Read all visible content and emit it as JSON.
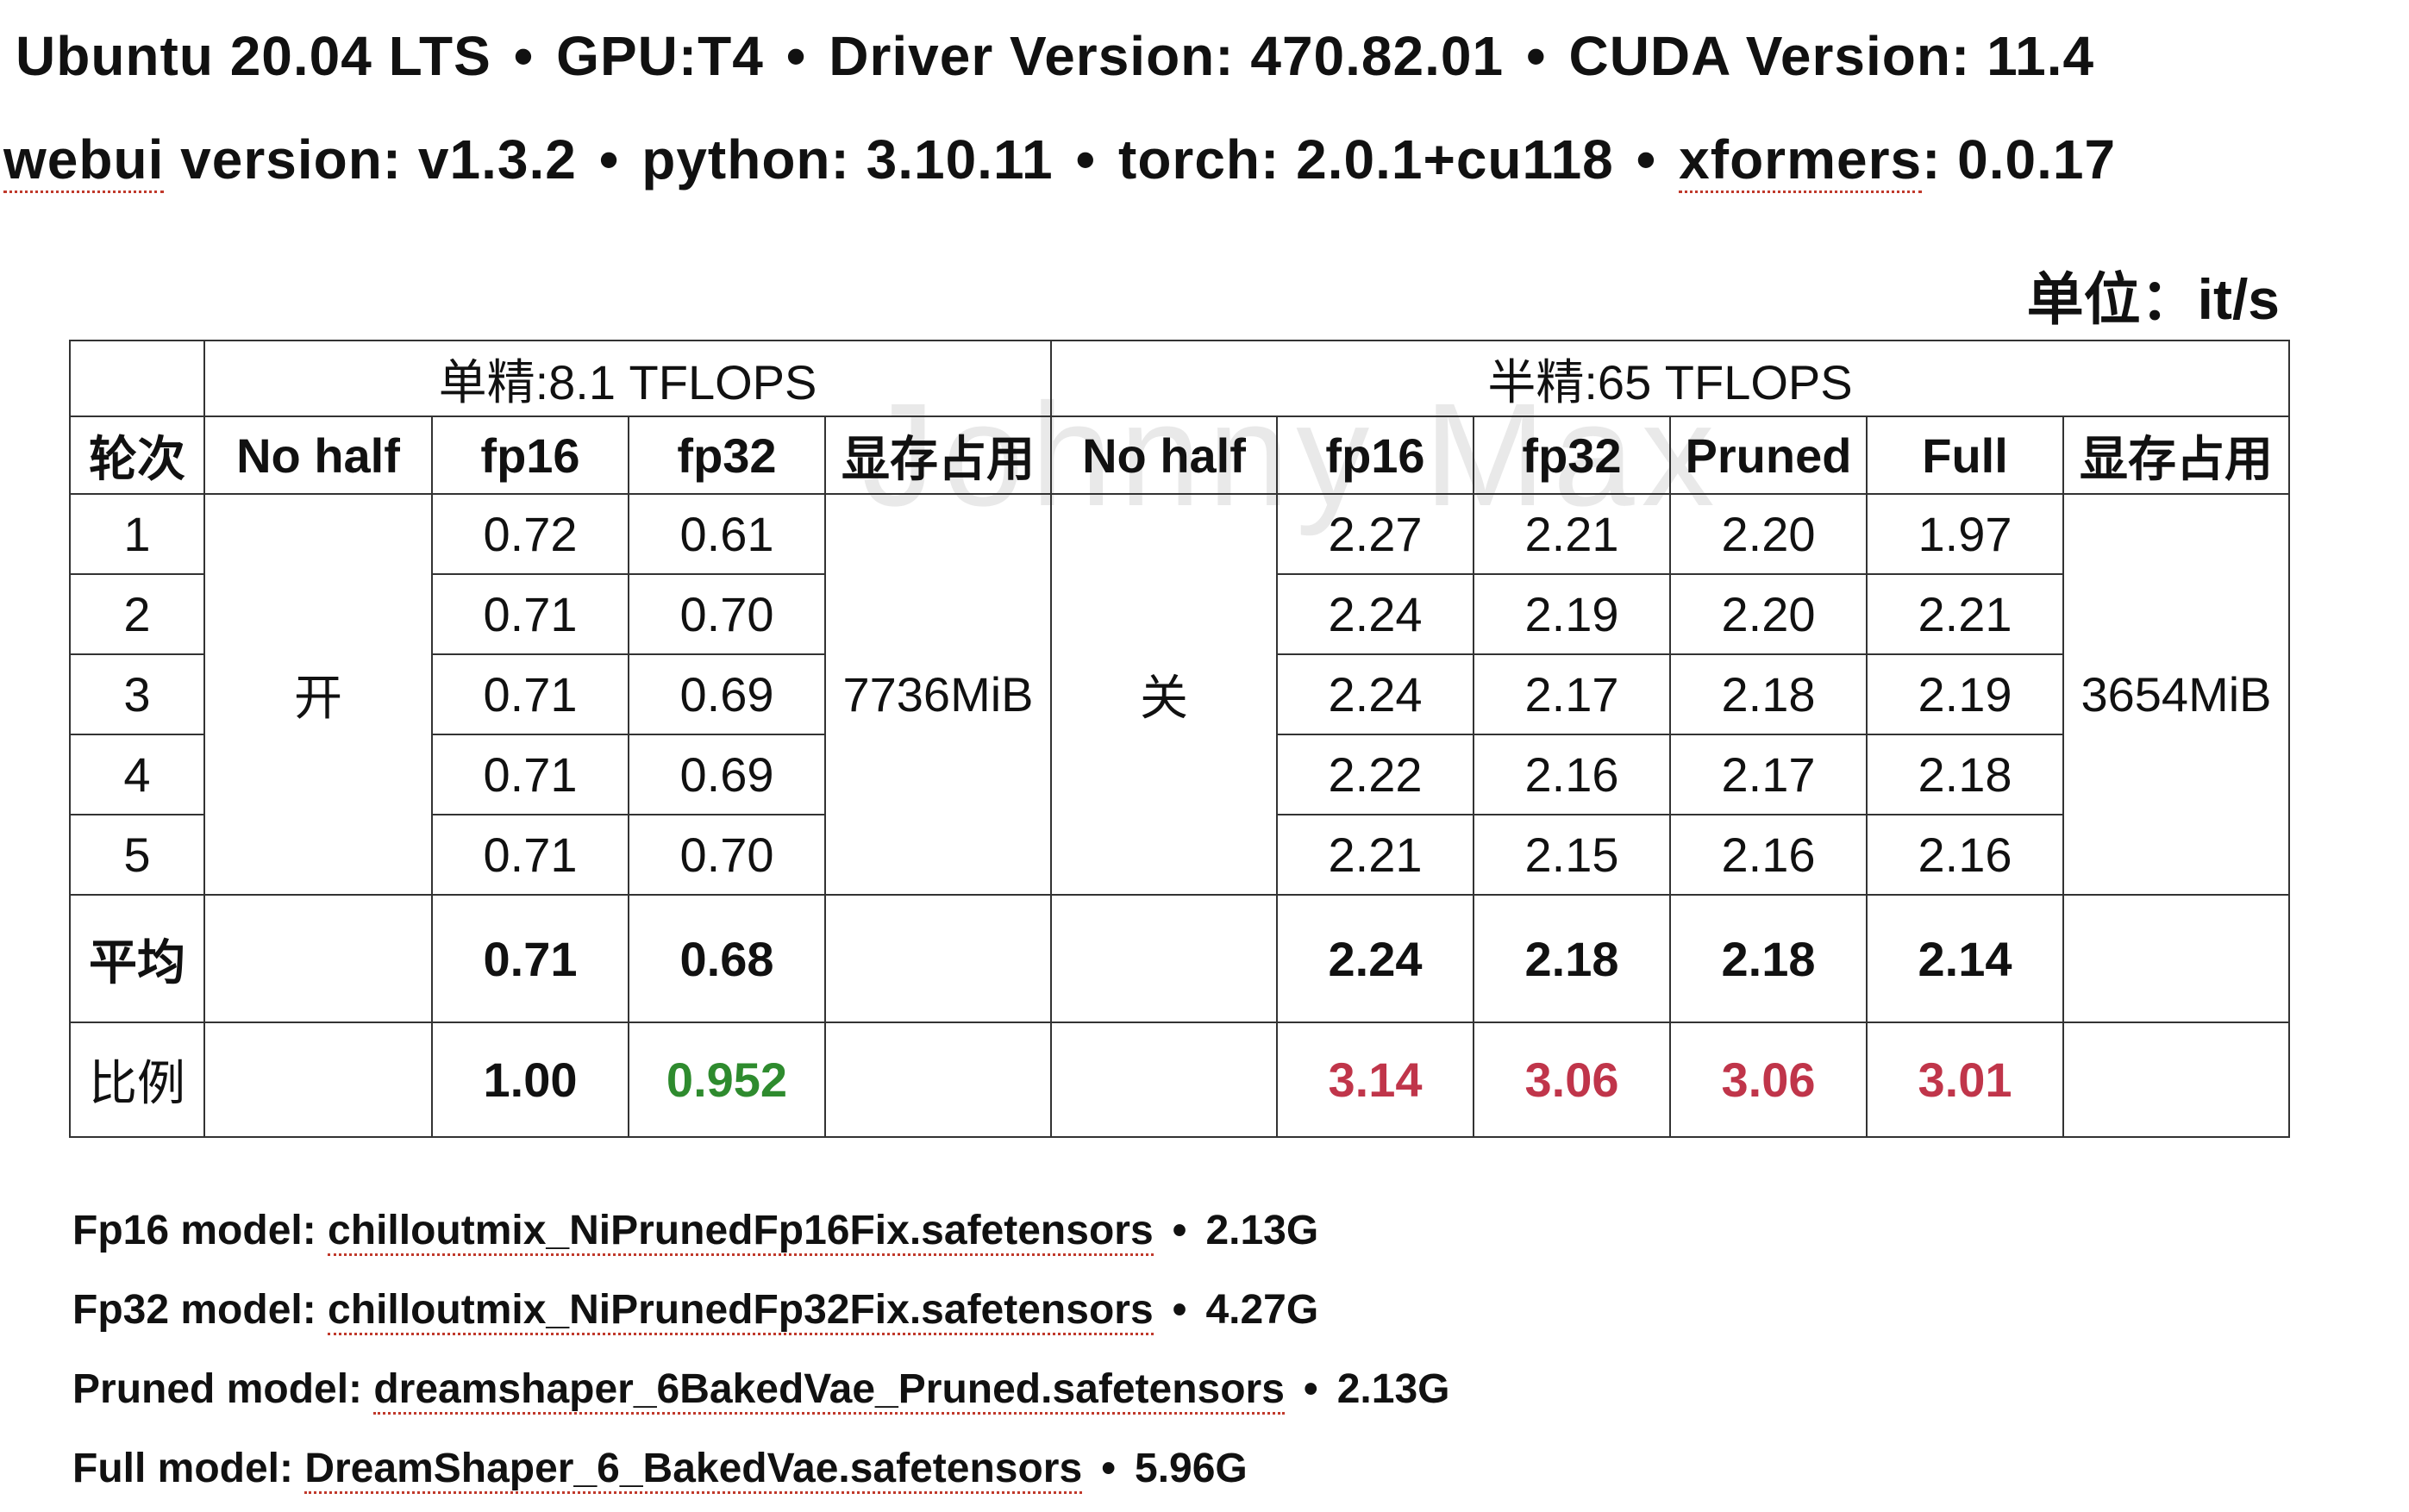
{
  "header": {
    "line1": {
      "os": "Ubuntu 20.04 LTS",
      "gpu": "GPU:T4",
      "driver": "Driver Version: 470.82.01",
      "cuda": "CUDA Version: 11.4"
    },
    "line2": {
      "webui_word": "webui",
      "webui_rest": " version: v1.3.2",
      "python": "python: 3.10.11",
      "torch": "torch: 2.0.1+cu118",
      "xformers_word": "xformers",
      "xformers_rest": ": 0.0.17"
    },
    "separator": "•",
    "unit": "单位：it/s"
  },
  "watermark": "Johnny Max",
  "table": {
    "group_single": "单精:8.1  TFLOPS",
    "group_half": "半精:65  TFLOPS",
    "columns": {
      "round": "轮次",
      "no_half_single": "No half",
      "fp16_single": "fp16",
      "fp32_single": "fp32",
      "mem_single": "显存占用",
      "no_half_half": "No half",
      "fp16_half": "fp16",
      "fp32_half": "fp32",
      "pruned_half": "Pruned",
      "full_half": "Full",
      "mem_half": "显存占用"
    },
    "no_half_single_value": "开",
    "no_half_half_value": "关",
    "mem_single_value": "7736MiB",
    "mem_half_value": "3654MiB",
    "rows": [
      {
        "round": "1",
        "s_fp16": "0.72",
        "s_fp32": "0.61",
        "h_fp16": "2.27",
        "h_fp32": "2.21",
        "h_pruned": "2.20",
        "h_full": "1.97"
      },
      {
        "round": "2",
        "s_fp16": "0.71",
        "s_fp32": "0.70",
        "h_fp16": "2.24",
        "h_fp32": "2.19",
        "h_pruned": "2.20",
        "h_full": "2.21"
      },
      {
        "round": "3",
        "s_fp16": "0.71",
        "s_fp32": "0.69",
        "h_fp16": "2.24",
        "h_fp32": "2.17",
        "h_pruned": "2.18",
        "h_full": "2.19"
      },
      {
        "round": "4",
        "s_fp16": "0.71",
        "s_fp32": "0.69",
        "h_fp16": "2.22",
        "h_fp32": "2.16",
        "h_pruned": "2.17",
        "h_full": "2.18"
      },
      {
        "round": "5",
        "s_fp16": "0.71",
        "s_fp32": "0.70",
        "h_fp16": "2.21",
        "h_fp32": "2.15",
        "h_pruned": "2.16",
        "h_full": "2.16"
      }
    ],
    "average": {
      "label": "平均",
      "s_fp16": "0.71",
      "s_fp32": "0.68",
      "h_fp16": "2.24",
      "h_fp32": "2.18",
      "h_pruned": "2.18",
      "h_full": "2.14"
    },
    "ratio": {
      "label": "比例",
      "s_fp16": "1.00",
      "s_fp32": "0.952",
      "h_fp16": "3.14",
      "h_fp32": "3.06",
      "h_pruned": "3.06",
      "h_full": "3.01"
    },
    "colors": {
      "ratio_green": "#2e8b2e",
      "ratio_red": "#c0354a"
    }
  },
  "models": [
    {
      "label": "Fp16 model: ",
      "file": "chilloutmix_NiPrunedFp16Fix.safetensors",
      "size": "2.13G"
    },
    {
      "label": "Fp32 model: ",
      "file": "chilloutmix_NiPrunedFp32Fix.safetensors",
      "size": "4.27G"
    },
    {
      "label": "Pruned model: ",
      "file": "dreamshaper_6BakedVae_Pruned.safetensors",
      "size": "2.13G"
    },
    {
      "label": "Full model: ",
      "file": "DreamShaper_6_BakedVae.safetensors",
      "size": "5.96G"
    }
  ]
}
